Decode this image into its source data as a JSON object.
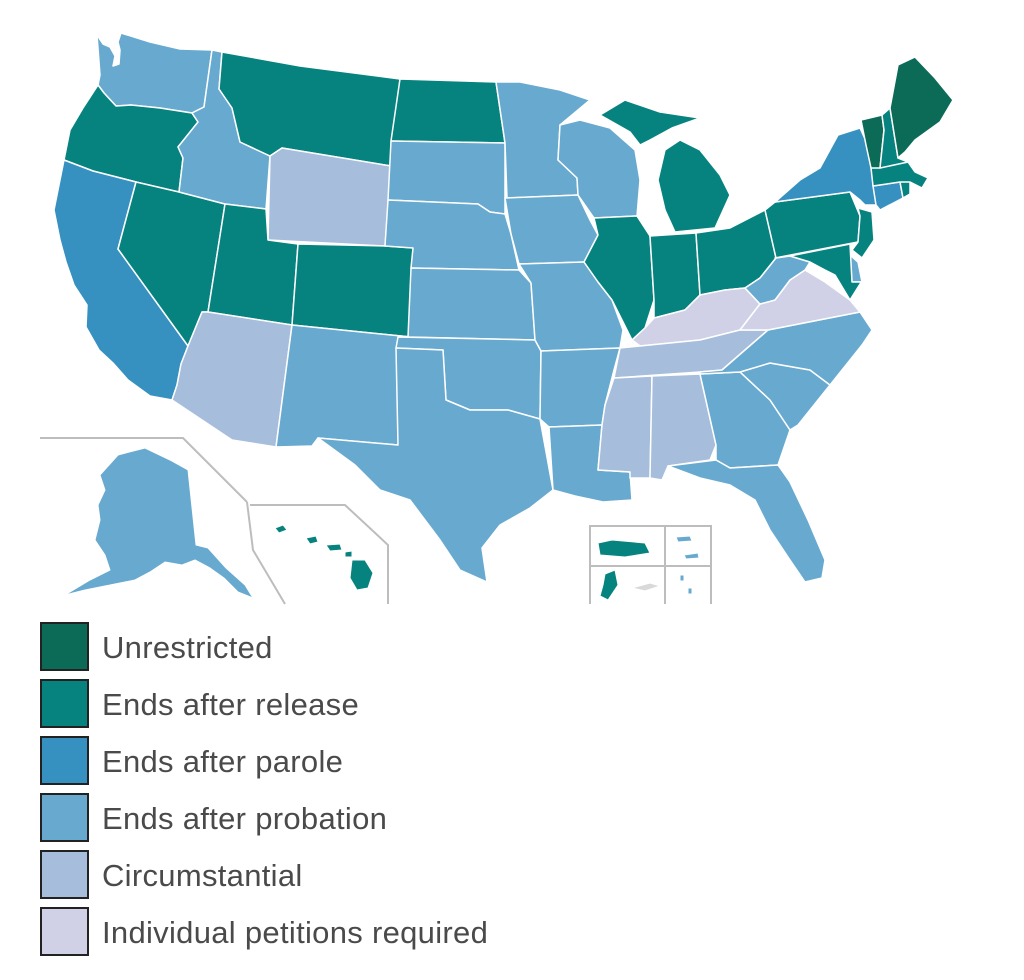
{
  "colors": {
    "unrestricted": "#0b6b57",
    "release": "#06837f",
    "parole": "#3690c0",
    "probation": "#67a9cf",
    "circumstantial": "#a6bddb",
    "petition": "#d0d1e6",
    "border": "#ffffff",
    "inset_frame": "#bdbdbd",
    "no_data": "#d9d9d9"
  },
  "legend": [
    {
      "key": "unrestricted",
      "label": "Unrestricted"
    },
    {
      "key": "release",
      "label": "Ends after release"
    },
    {
      "key": "parole",
      "label": "Ends after parole"
    },
    {
      "key": "probation",
      "label": "Ends after probation"
    },
    {
      "key": "circumstantial",
      "label": "Circumstantial"
    },
    {
      "key": "petition",
      "label": "Individual petitions required"
    }
  ],
  "regions": [
    {
      "id": "WA",
      "category": "probation"
    },
    {
      "id": "OR",
      "category": "release"
    },
    {
      "id": "CA",
      "category": "parole"
    },
    {
      "id": "NV",
      "category": "release"
    },
    {
      "id": "ID",
      "category": "probation"
    },
    {
      "id": "MT",
      "category": "release"
    },
    {
      "id": "WY",
      "category": "circumstantial"
    },
    {
      "id": "UT",
      "category": "release"
    },
    {
      "id": "CO",
      "category": "release"
    },
    {
      "id": "AZ",
      "category": "circumstantial"
    },
    {
      "id": "NM",
      "category": "probation"
    },
    {
      "id": "ND",
      "category": "release"
    },
    {
      "id": "SD",
      "category": "probation"
    },
    {
      "id": "NE",
      "category": "probation"
    },
    {
      "id": "KS",
      "category": "probation"
    },
    {
      "id": "OK",
      "category": "probation"
    },
    {
      "id": "TX",
      "category": "probation"
    },
    {
      "id": "MN",
      "category": "probation"
    },
    {
      "id": "IA",
      "category": "probation"
    },
    {
      "id": "MO",
      "category": "probation"
    },
    {
      "id": "AR",
      "category": "probation"
    },
    {
      "id": "LA",
      "category": "probation"
    },
    {
      "id": "WI",
      "category": "probation"
    },
    {
      "id": "IL",
      "category": "release"
    },
    {
      "id": "MI",
      "category": "release"
    },
    {
      "id": "IN",
      "category": "release"
    },
    {
      "id": "OH",
      "category": "release"
    },
    {
      "id": "KY",
      "category": "petition"
    },
    {
      "id": "TN",
      "category": "circumstantial"
    },
    {
      "id": "MS",
      "category": "circumstantial"
    },
    {
      "id": "AL",
      "category": "circumstantial"
    },
    {
      "id": "GA",
      "category": "probation"
    },
    {
      "id": "FL",
      "category": "probation"
    },
    {
      "id": "SC",
      "category": "probation"
    },
    {
      "id": "NC",
      "category": "probation"
    },
    {
      "id": "VA",
      "category": "petition"
    },
    {
      "id": "WV",
      "category": "probation"
    },
    {
      "id": "PA",
      "category": "release"
    },
    {
      "id": "NY",
      "category": "parole"
    },
    {
      "id": "NJ",
      "category": "release"
    },
    {
      "id": "DE",
      "category": "probation"
    },
    {
      "id": "MD",
      "category": "release"
    },
    {
      "id": "CT",
      "category": "parole"
    },
    {
      "id": "RI",
      "category": "release"
    },
    {
      "id": "MA",
      "category": "release"
    },
    {
      "id": "VT",
      "category": "unrestricted"
    },
    {
      "id": "NH",
      "category": "release"
    },
    {
      "id": "ME",
      "category": "unrestricted"
    },
    {
      "id": "AK",
      "category": "probation"
    },
    {
      "id": "HI",
      "category": "release"
    },
    {
      "id": "PR",
      "category": "release"
    },
    {
      "id": "VI",
      "category": "probation"
    },
    {
      "id": "GU",
      "category": "release"
    },
    {
      "id": "AS",
      "category": "no_data"
    },
    {
      "id": "MP",
      "category": "probation"
    }
  ]
}
